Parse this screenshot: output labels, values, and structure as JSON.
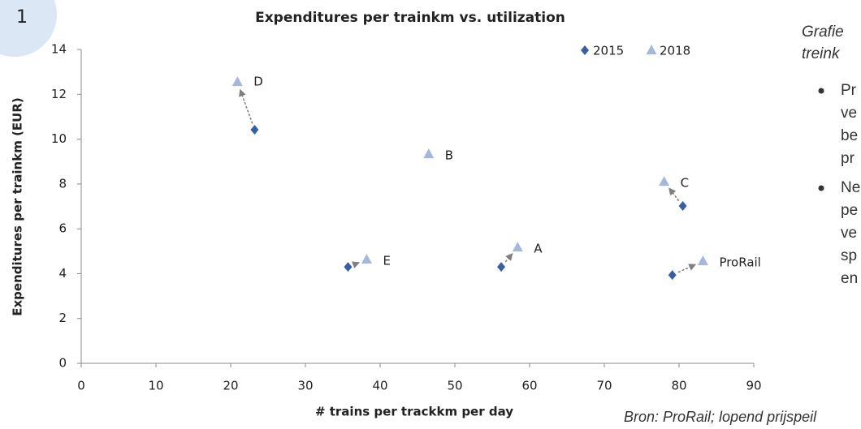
{
  "chart_data": {
    "type": "scatter",
    "title": "Expenditures per trainkm vs. utilization",
    "x_label": "# trains per trackkm per day",
    "y_label": "Expenditures per trainkm (EUR)",
    "xlim": [
      0,
      90
    ],
    "xticks": [
      0,
      10,
      20,
      30,
      40,
      50,
      60,
      70,
      80,
      90
    ],
    "ylim": [
      0,
      14
    ],
    "yticks": [
      0,
      2,
      4,
      6,
      8,
      10,
      12,
      14
    ],
    "legend": "top-right",
    "point_labels": [
      "D",
      "B",
      "C",
      "A",
      "E",
      "ProRail"
    ],
    "series": [
      {
        "name": "2015",
        "color": "#3a5fa0",
        "marker": "diamond",
        "x": [
          23.2,
          null,
          80.5,
          56.2,
          35.7,
          79.1
        ],
        "values": [
          10.42,
          null,
          7.02,
          4.3,
          4.3,
          3.94
        ]
      },
      {
        "name": "2018",
        "color": "#a6b6dc",
        "marker": "triangle",
        "x": [
          20.9,
          46.5,
          78.0,
          58.4,
          38.2,
          83.2
        ],
        "values": [
          12.55,
          9.33,
          8.1,
          5.17,
          4.63,
          4.56
        ]
      }
    ]
  },
  "slide": {
    "number": "1",
    "side_title": [
      "Grafie",
      "treink"
    ],
    "bullets": [
      [
        "Pr",
        "ve",
        "be",
        "pr"
      ],
      [
        "Ne",
        "pe",
        "ve",
        "sp",
        "en"
      ]
    ],
    "source": "Bron: ProRail; lopend prijspeil"
  }
}
